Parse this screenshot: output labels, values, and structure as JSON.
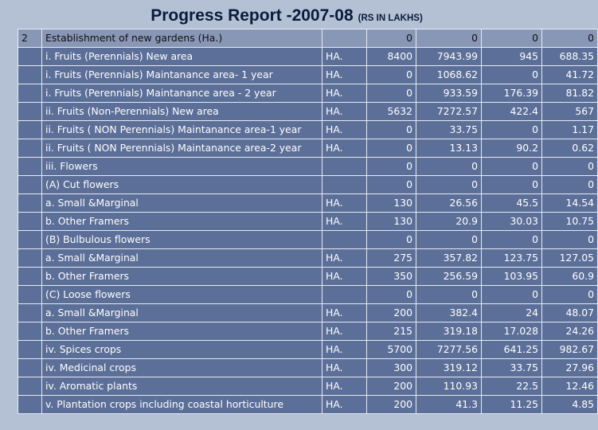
{
  "title": {
    "main": "Progress Report -2007-08",
    "sub": "(RS IN LAKHS)"
  },
  "header_row": {
    "sno": "2",
    "desc": "Establishment of new gardens (Ha.)",
    "unit": "",
    "values": [
      "0",
      "0",
      "0",
      "0"
    ]
  },
  "rows": [
    {
      "desc": "i. Fruits (Perennials) New area",
      "unit": "HA.",
      "values": [
        "8400",
        "7943.99",
        "945",
        "688.35"
      ]
    },
    {
      "desc": "i. Fruits (Perennials) Maintanance area- 1 year",
      "unit": "HA.",
      "values": [
        "0",
        "1068.62",
        "0",
        "41.72"
      ]
    },
    {
      "desc": "i. Fruits (Perennials) Maintanance area - 2 year",
      "unit": "HA.",
      "values": [
        "0",
        "933.59",
        "176.39",
        "81.82"
      ]
    },
    {
      "desc": "ii. Fruits (Non-Perennials) New area",
      "unit": "HA.",
      "values": [
        "5632",
        "7272.57",
        "422.4",
        "567"
      ]
    },
    {
      "desc": "ii. Fruits ( NON Perennials) Maintanance area-1 year",
      "unit": "HA.",
      "values": [
        "0",
        "33.75",
        "0",
        "1.17"
      ]
    },
    {
      "desc": "ii. Fruits ( NON Perennials) Maintanance area-2 year",
      "unit": "HA.",
      "values": [
        "0",
        "13.13",
        "90.2",
        "0.62"
      ]
    },
    {
      "desc": "iii. Flowers",
      "unit": "",
      "values": [
        "0",
        "0",
        "0",
        "0"
      ]
    },
    {
      "desc": "(A) Cut flowers",
      "unit": "",
      "values": [
        "0",
        "0",
        "0",
        "0"
      ]
    },
    {
      "desc": "a. Small &Marginal",
      "unit": "HA.",
      "values": [
        "130",
        "26.56",
        "45.5",
        "14.54"
      ]
    },
    {
      "desc": "b. Other Framers",
      "unit": "HA.",
      "values": [
        "130",
        "20.9",
        "30.03",
        "10.75"
      ]
    },
    {
      "desc": "(B) Bulbulous flowers",
      "unit": "",
      "values": [
        "0",
        "0",
        "0",
        "0"
      ]
    },
    {
      "desc": "a. Small &Marginal",
      "unit": "HA.",
      "values": [
        "275",
        "357.82",
        "123.75",
        "127.05"
      ]
    },
    {
      "desc": "b. Other Framers",
      "unit": "HA.",
      "values": [
        "350",
        "256.59",
        "103.95",
        "60.9"
      ]
    },
    {
      "desc": "(C) Loose  flowers",
      "unit": "",
      "values": [
        "0",
        "0",
        "0",
        "0"
      ]
    },
    {
      "desc": "a. Small &Marginal",
      "unit": "HA.",
      "values": [
        "200",
        "382.4",
        "24",
        "48.07"
      ]
    },
    {
      "desc": "b. Other Framers",
      "unit": "HA.",
      "values": [
        "215",
        "319.18",
        "17.028",
        "24.26"
      ]
    },
    {
      "desc": "iv. Spices  crops",
      "unit": "HA.",
      "values": [
        "5700",
        "7277.56",
        "641.25",
        "982.67"
      ]
    },
    {
      "desc": "iv. Medicinal crops",
      "unit": "HA.",
      "values": [
        "300",
        "319.12",
        "33.75",
        "27.96"
      ]
    },
    {
      "desc": "iv. Aromatic plants",
      "unit": "HA.",
      "values": [
        "200",
        "110.93",
        "22.5",
        "12.46"
      ]
    },
    {
      "desc": "v. Plantation crops including coastal horticulture",
      "unit": "HA.",
      "values": [
        "200",
        "41.3",
        "11.25",
        "4.85"
      ]
    }
  ]
}
